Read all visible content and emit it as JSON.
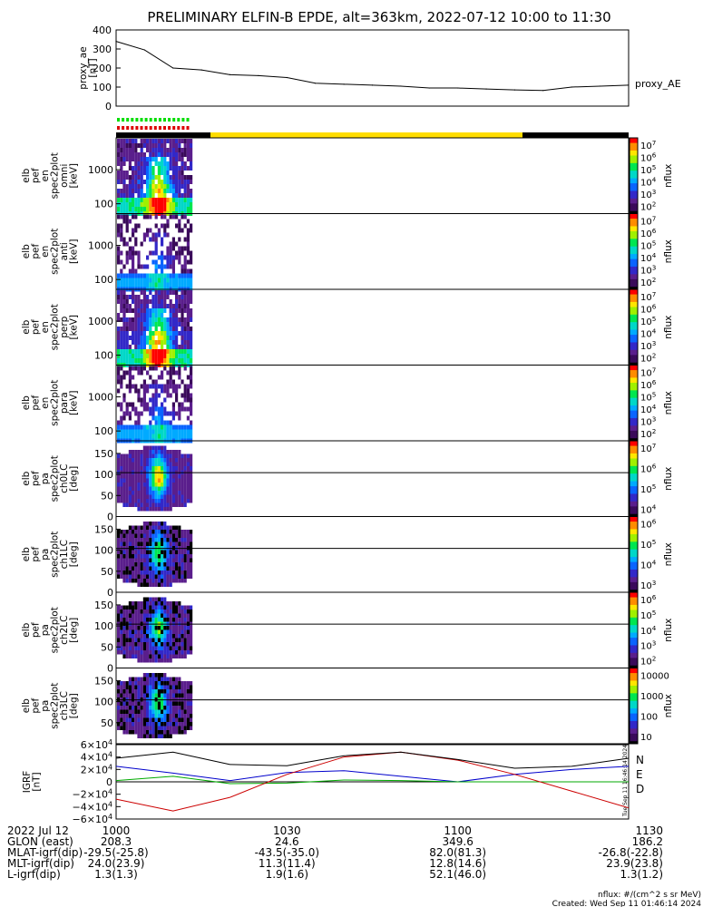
{
  "title": "PRELIMINARY ELFIN-B EPDE, alt=363km, 2022-07-12 10:00 to 11:30",
  "colors": {
    "black": "#000000",
    "ae_line": "#000000",
    "igrf_n": "#0000cc",
    "igrf_e": "#00aa00",
    "igrf_d": "#cc0000",
    "sun_bar": "#ffdd00",
    "green_dash": "#00dd00",
    "red_dash": "#dd0000"
  },
  "chart_data": [
    {
      "type": "line",
      "panel": "proxy_ae",
      "ylabel_lines": [
        "proxy_ae",
        "[nT]"
      ],
      "legend": "proxy_AE",
      "ylim": [
        0,
        400
      ],
      "yticks": [
        "400",
        "300",
        "200",
        "100",
        "0"
      ],
      "x_min": [
        0,
        5,
        10,
        15,
        20,
        25,
        30,
        35,
        40,
        45,
        50,
        55,
        60,
        65,
        70,
        75,
        80,
        85,
        90
      ],
      "values": [
        340,
        295,
        200,
        190,
        165,
        160,
        150,
        120,
        115,
        110,
        105,
        95,
        95,
        90,
        85,
        82,
        100,
        105,
        110
      ]
    },
    {
      "type": "heatmap",
      "panel": "omni",
      "ylabel_lines": [
        "elb",
        "pef",
        "en",
        "spec2plot",
        "omni",
        "[keV]"
      ],
      "yticks": [
        "1000",
        "100"
      ],
      "colorbar": {
        "label": "nflux",
        "ticks": [
          "10^7",
          "10^6",
          "10^5",
          "10^4",
          "10^3",
          "10^2"
        ]
      }
    },
    {
      "type": "heatmap",
      "panel": "anti",
      "ylabel_lines": [
        "elb",
        "pef",
        "en",
        "spec2plot",
        "anti",
        "[keV]"
      ],
      "yticks": [
        "1000",
        "100"
      ],
      "colorbar": {
        "label": "nflux",
        "ticks": [
          "10^7",
          "10^6",
          "10^5",
          "10^4",
          "10^3",
          "10^2"
        ]
      }
    },
    {
      "type": "heatmap",
      "panel": "perp",
      "ylabel_lines": [
        "elb",
        "pef",
        "en",
        "spec2plot",
        "perp",
        "[keV]"
      ],
      "yticks": [
        "1000",
        "100"
      ],
      "colorbar": {
        "label": "nflux",
        "ticks": [
          "10^7",
          "10^6",
          "10^5",
          "10^4",
          "10^3",
          "10^2"
        ]
      }
    },
    {
      "type": "heatmap",
      "panel": "para",
      "ylabel_lines": [
        "elb",
        "pef",
        "en",
        "spec2plot",
        "para",
        "[keV]"
      ],
      "yticks": [
        "1000",
        "100"
      ],
      "colorbar": {
        "label": "nflux",
        "ticks": [
          "10^7",
          "10^6",
          "10^5",
          "10^4",
          "10^3",
          "10^2"
        ]
      }
    },
    {
      "type": "heatmap",
      "panel": "ch0LC",
      "ylabel_lines": [
        "elb",
        "pef",
        "pa",
        "spec2plot",
        "ch0LC",
        "[deg]"
      ],
      "yticks": [
        "150",
        "100",
        "50",
        "0"
      ],
      "colorbar": {
        "label": "nflux",
        "ticks": [
          "10^7",
          "10^6",
          "10^5",
          "10^4"
        ]
      }
    },
    {
      "type": "heatmap",
      "panel": "ch1LC",
      "ylabel_lines": [
        "elb",
        "pef",
        "pa",
        "spec2plot",
        "ch1LC",
        "[deg]"
      ],
      "yticks": [
        "150",
        "100",
        "50",
        "0"
      ],
      "colorbar": {
        "label": "nflux",
        "ticks": [
          "10^6",
          "10^5",
          "10^4",
          "10^3"
        ]
      }
    },
    {
      "type": "heatmap",
      "panel": "ch2LC",
      "ylabel_lines": [
        "elb",
        "pef",
        "pa",
        "spec2plot",
        "ch2LC",
        "[deg]"
      ],
      "yticks": [
        "150",
        "100",
        "50",
        "0"
      ],
      "colorbar": {
        "label": "nflux",
        "ticks": [
          "10^6",
          "10^5",
          "10^4",
          "10^3",
          "10^2"
        ]
      }
    },
    {
      "type": "heatmap",
      "panel": "ch3LC",
      "ylabel_lines": [
        "elb",
        "pef",
        "pa",
        "spec2plot",
        "ch3LC",
        "[deg]"
      ],
      "yticks": [
        "150",
        "100",
        "50"
      ],
      "colorbar": {
        "label": "nflux",
        "ticks": [
          "10000",
          "1000",
          "100",
          "10"
        ]
      }
    },
    {
      "type": "line",
      "panel": "IGRF",
      "ylabel_lines": [
        "IGRF",
        "[nT]"
      ],
      "ylim": [
        -60000,
        60000
      ],
      "yticks": [
        "6×10^4",
        "4×10^4",
        "2×10^4",
        "0",
        "−2×10^4",
        "−4×10^4",
        "−6×10^4"
      ],
      "legend": [
        "N",
        "E",
        "D"
      ],
      "x_min": [
        0,
        10,
        20,
        30,
        40,
        50,
        60,
        70,
        80,
        90
      ],
      "series": [
        {
          "name": "N",
          "color": "#0000cc",
          "values": [
            25000,
            14000,
            2000,
            15000,
            18000,
            9000,
            0,
            12000,
            20000,
            25000
          ]
        },
        {
          "name": "E",
          "color": "#00aa00",
          "values": [
            2000,
            9000,
            -3000,
            -2000,
            3000,
            2000,
            0,
            0,
            0,
            0
          ]
        },
        {
          "name": "D",
          "color": "#cc0000",
          "values": [
            -28000,
            -47000,
            -25000,
            12000,
            40000,
            48000,
            35000,
            12000,
            -15000,
            -42000
          ]
        },
        {
          "name": "total",
          "color": "#000000",
          "values": [
            38000,
            48000,
            28000,
            26000,
            42000,
            48000,
            36000,
            22000,
            25000,
            38000
          ]
        }
      ]
    }
  ],
  "side_note": "Tue Sep 11 16:46:14 2024",
  "ephemeris": {
    "rows": [
      {
        "label": "2022 Jul 12",
        "v": [
          "1000",
          "1030",
          "1100",
          "1130"
        ]
      },
      {
        "label": "GLON (east)",
        "v": [
          "208.3",
          "24.6",
          "349.6",
          "186.2"
        ]
      },
      {
        "label": "MLAT-igrf(dip)",
        "v": [
          "-29.5(-25.8)",
          "-43.5(-35.0)",
          "82.0(81.3)",
          "-26.8(-22.8)"
        ]
      },
      {
        "label": "MLT-igrf(dip)",
        "v": [
          "24.0(23.9)",
          "11.3(11.4)",
          "12.8(14.6)",
          "23.9(23.8)"
        ]
      },
      {
        "label": "L-igrf(dip)",
        "v": [
          "1.3(1.3)",
          "1.9(1.6)",
          "52.1(46.0)",
          "1.3(1.2)"
        ]
      }
    ]
  },
  "footer": {
    "units": "nflux: #/(cm^2 s sr MeV)",
    "created": "Created: Wed Sep 11 01:46:14 2024"
  }
}
